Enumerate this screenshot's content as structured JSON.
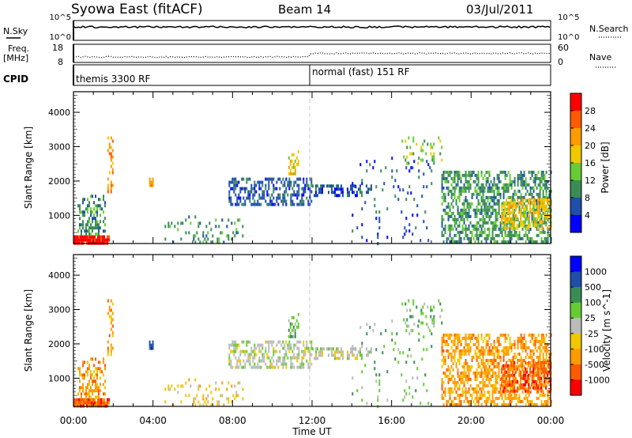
{
  "header": {
    "title": "Syowa East (fitACF)",
    "beam": "Beam 14",
    "date": "03/Jul/2011"
  },
  "top_panels": {
    "nsky_label": "N.Sky",
    "nsky_ticks": [
      "10^5",
      "10^0"
    ],
    "nsearch_label": "N.Search",
    "nsearch_ticks": [
      "10^5",
      "10^0"
    ],
    "freq_label": "Freq.",
    "freq_unit": "[MHz]",
    "freq_ticks": [
      "18",
      "8"
    ],
    "nave_label": "Nave",
    "nave_ticks": [
      "60",
      "0"
    ],
    "cpid_label": "CPID",
    "cpid_segments": [
      {
        "label": "themis 3300 RF",
        "start_hour": 0
      },
      {
        "label": "normal (fast) 151 RF",
        "start_hour": 12
      }
    ]
  },
  "chart_data": [
    {
      "type": "heatmap",
      "name": "Power",
      "ylabel": "Slant Range [km]",
      "yticks": [
        "4000",
        "3000",
        "2000",
        "1000"
      ],
      "ylim": [
        180,
        4600
      ],
      "xlim_hours": [
        0,
        24
      ],
      "colorbar_label": "Power [dB]",
      "colorbar_ticks": [
        "28",
        "24",
        "20",
        "16",
        "12",
        "8",
        "4"
      ],
      "colorbar_colors": [
        "#ff0000",
        "#ff5a00",
        "#ff9b00",
        "#f0c800",
        "#66cc33",
        "#3a8c55",
        "#1f4fa8",
        "#0000ff"
      ],
      "regions": [
        {
          "t0": 0.0,
          "t1": 1.8,
          "r0": 200,
          "r1": 420,
          "dom": 0,
          "density": 0.95
        },
        {
          "t0": 0.2,
          "t1": 1.6,
          "r0": 420,
          "r1": 1600,
          "dom": 5,
          "density": 0.45
        },
        {
          "t0": 1.7,
          "t1": 2.0,
          "r0": 1700,
          "r1": 3300,
          "dom": 2,
          "density": 0.35
        },
        {
          "t0": 3.8,
          "t1": 4.0,
          "r0": 1900,
          "r1": 2100,
          "dom": 2,
          "density": 0.8
        },
        {
          "t0": 4.5,
          "t1": 8.5,
          "r0": 200,
          "r1": 1000,
          "dom": 5,
          "density": 0.15
        },
        {
          "t0": 7.8,
          "t1": 12.0,
          "r0": 1300,
          "r1": 2100,
          "dom": 6,
          "density": 0.5
        },
        {
          "t0": 10.8,
          "t1": 11.3,
          "r0": 2200,
          "r1": 2900,
          "dom": 3,
          "density": 0.6
        },
        {
          "t0": 12.0,
          "t1": 15.0,
          "r0": 1600,
          "r1": 1900,
          "dom": 6,
          "density": 0.45
        },
        {
          "t0": 14.0,
          "t1": 18.0,
          "r0": 200,
          "r1": 2800,
          "dom": 6,
          "density": 0.05
        },
        {
          "t0": 16.5,
          "t1": 18.5,
          "r0": 2500,
          "r1": 3300,
          "dom": 4,
          "density": 0.15
        },
        {
          "t0": 18.5,
          "t1": 24.0,
          "r0": 200,
          "r1": 2300,
          "dom": 5,
          "density": 0.55
        },
        {
          "t0": 21.5,
          "t1": 24.0,
          "r0": 600,
          "r1": 1500,
          "dom": 3,
          "density": 0.6
        }
      ]
    },
    {
      "type": "heatmap",
      "name": "Velocity",
      "ylabel": "Slant Range [km]",
      "yticks": [
        "4000",
        "3000",
        "2000",
        "1000"
      ],
      "ylim": [
        180,
        4600
      ],
      "xlim_hours": [
        0,
        24
      ],
      "colorbar_label": "Velocity [m s^-1]",
      "colorbar_ticks": [
        "1000",
        "500",
        "100",
        "25",
        "-25",
        "-100",
        "-500",
        "-1000"
      ],
      "colorbar_colors": [
        "#0000ff",
        "#1f4fa8",
        "#3a8c55",
        "#66cc33",
        "#bbbbbb",
        "#f0c800",
        "#ff9b00",
        "#ff5a00",
        "#ff0000"
      ],
      "regions": [
        {
          "t0": 0.0,
          "t1": 1.8,
          "r0": 200,
          "r1": 420,
          "dom": 7,
          "density": 0.95
        },
        {
          "t0": 0.2,
          "t1": 1.6,
          "r0": 420,
          "r1": 1600,
          "dom": 6,
          "density": 0.45
        },
        {
          "t0": 1.7,
          "t1": 2.0,
          "r0": 1700,
          "r1": 3300,
          "dom": 6,
          "density": 0.35
        },
        {
          "t0": 3.8,
          "t1": 4.0,
          "r0": 1900,
          "r1": 2100,
          "dom": 1,
          "density": 0.8
        },
        {
          "t0": 4.5,
          "t1": 8.5,
          "r0": 200,
          "r1": 1000,
          "dom": 5,
          "density": 0.15
        },
        {
          "t0": 7.8,
          "t1": 12.0,
          "r0": 1300,
          "r1": 2100,
          "dom": 4,
          "density": 0.5
        },
        {
          "t0": 10.8,
          "t1": 11.3,
          "r0": 2200,
          "r1": 2900,
          "dom": 3,
          "density": 0.6
        },
        {
          "t0": 12.0,
          "t1": 15.0,
          "r0": 1600,
          "r1": 1900,
          "dom": 4,
          "density": 0.45
        },
        {
          "t0": 14.0,
          "t1": 18.0,
          "r0": 200,
          "r1": 2800,
          "dom": 3,
          "density": 0.05
        },
        {
          "t0": 16.5,
          "t1": 18.5,
          "r0": 2500,
          "r1": 3300,
          "dom": 3,
          "density": 0.15
        },
        {
          "t0": 18.5,
          "t1": 24.0,
          "r0": 200,
          "r1": 2300,
          "dom": 6,
          "density": 0.55
        },
        {
          "t0": 21.5,
          "t1": 24.0,
          "r0": 600,
          "r1": 1500,
          "dom": 7,
          "density": 0.6
        }
      ]
    }
  ],
  "x_axis": {
    "ticks": [
      "00:00",
      "04:00",
      "08:00",
      "12:00",
      "16:00",
      "20:00",
      "00:00"
    ],
    "label": "Time UT"
  }
}
